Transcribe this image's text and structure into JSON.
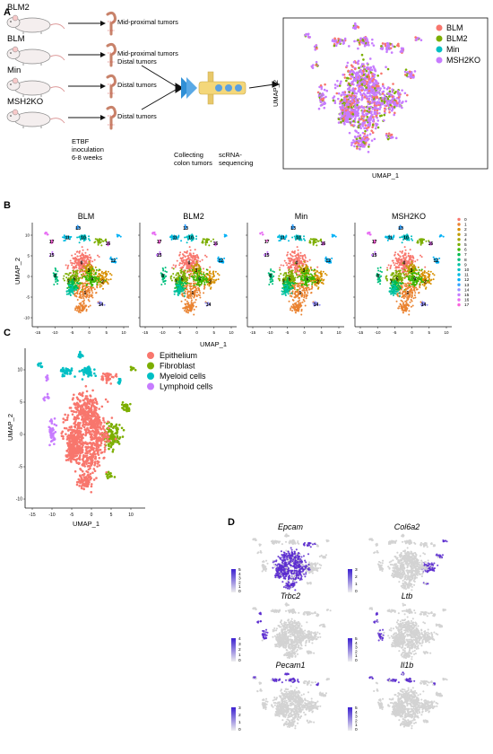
{
  "panels": {
    "a": "A",
    "b": "B",
    "c": "C",
    "d": "D"
  },
  "panel_a": {
    "mice": [
      "BLM2",
      "BLM",
      "Min",
      "MSH2KO"
    ],
    "tumor_labels": [
      [
        "Mid-proximal tumors"
      ],
      [
        "Mid-proximal tumors",
        "Distal tumors"
      ],
      [
        "Distal tumors"
      ],
      [
        "Distal tumors"
      ]
    ],
    "notes": {
      "inoculation": [
        "ETBF",
        "inoculation",
        "6-8 weeks"
      ],
      "collecting": [
        "Collecting",
        "colon tumors"
      ],
      "sequencing": [
        "scRNA-",
        "sequencing"
      ]
    },
    "umap": {
      "xlabel": "UMAP_1",
      "ylabel": "UMAP_2",
      "legend": [
        {
          "name": "BLM",
          "color": "#F8766D"
        },
        {
          "name": "BLM2",
          "color": "#7CAE00"
        },
        {
          "name": "Min",
          "color": "#00BFC4"
        },
        {
          "name": "MSH2KO",
          "color": "#C77CFF"
        }
      ]
    }
  },
  "panel_b": {
    "titles": [
      "BLM",
      "BLM2",
      "Min",
      "MSH2KO"
    ],
    "xlabel": "UMAP_1",
    "ylabel": "UMAP_2",
    "x_ticks": [
      "-15",
      "-10",
      "-5",
      "0",
      "5",
      "10"
    ],
    "y_ticks": [
      "10",
      "5",
      "0",
      "-5",
      "-10"
    ],
    "cluster_legend": [
      {
        "name": "0",
        "color": "#F8766D"
      },
      {
        "name": "1",
        "color": "#EA8331"
      },
      {
        "name": "2",
        "color": "#D89000"
      },
      {
        "name": "3",
        "color": "#C09B00"
      },
      {
        "name": "4",
        "color": "#A3A500"
      },
      {
        "name": "5",
        "color": "#7CAE00"
      },
      {
        "name": "6",
        "color": "#39B600"
      },
      {
        "name": "7",
        "color": "#00BB4E"
      },
      {
        "name": "8",
        "color": "#00BF7D"
      },
      {
        "name": "9",
        "color": "#00C1A3"
      },
      {
        "name": "10",
        "color": "#00BFC4"
      },
      {
        "name": "11",
        "color": "#00BAE0"
      },
      {
        "name": "12",
        "color": "#00B0F6"
      },
      {
        "name": "13",
        "color": "#35A2FF"
      },
      {
        "name": "14",
        "color": "#9590FF"
      },
      {
        "name": "15",
        "color": "#C77CFF"
      },
      {
        "name": "16",
        "color": "#E76BF3"
      },
      {
        "name": "17",
        "color": "#FA62DB"
      }
    ]
  },
  "panel_c": {
    "xlabel": "UMAP_1",
    "ylabel": "UMAP_2",
    "x_ticks": [
      "-15",
      "-10",
      "-5",
      "0",
      "5",
      "10"
    ],
    "y_ticks": [
      "10",
      "5",
      "0",
      "-5",
      "-10"
    ],
    "legend": [
      {
        "name": "Epithelium",
        "color": "#F8766D"
      },
      {
        "name": "Fibroblast",
        "color": "#7CAE00"
      },
      {
        "name": "Myeloid cells",
        "color": "#00BFC4"
      },
      {
        "name": "Lymphoid cells",
        "color": "#C77CFF"
      }
    ]
  },
  "panel_d": {
    "genes": [
      {
        "name": "Epcam",
        "scale": [
          "5",
          "4",
          "3",
          "2",
          "1",
          "0"
        ]
      },
      {
        "name": "Col6a2",
        "scale": [
          "3",
          "2",
          "1",
          "0"
        ]
      },
      {
        "name": "Trbc2",
        "scale": [
          "4",
          "3",
          "2",
          "1",
          "0"
        ]
      },
      {
        "name": "Ltb",
        "scale": [
          "5",
          "4",
          "3",
          "2",
          "1",
          "0"
        ]
      },
      {
        "name": "Pecam1",
        "scale": [
          "3",
          "2",
          "1",
          "0"
        ]
      },
      {
        "name": "Il1b",
        "scale": [
          "5",
          "4",
          "3",
          "2",
          "1",
          "0"
        ]
      }
    ],
    "base_color": "#d3d3d3",
    "high_color": "#5a2ccf"
  }
}
